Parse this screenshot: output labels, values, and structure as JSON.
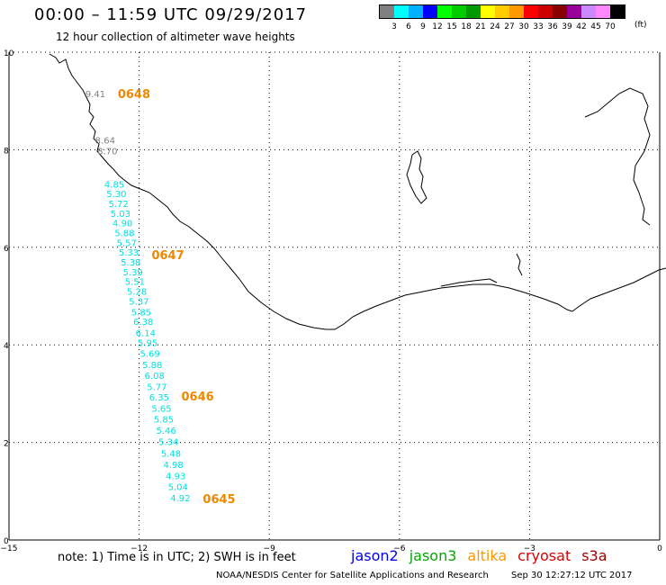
{
  "title": "00:00 – 11:59 UTC 09/29/2017",
  "subtitle": "12 hour collection of altimeter wave heights",
  "legend": {
    "unit": "(ft)",
    "bins": [
      {
        "label": "3",
        "color": "#808080"
      },
      {
        "label": "6",
        "color": "#00ffff"
      },
      {
        "label": "9",
        "color": "#00b0ff"
      },
      {
        "label": "12",
        "color": "#0000ff"
      },
      {
        "label": "15",
        "color": "#00ff00"
      },
      {
        "label": "18",
        "color": "#00cc00"
      },
      {
        "label": "21",
        "color": "#009900"
      },
      {
        "label": "24",
        "color": "#ffff00"
      },
      {
        "label": "27",
        "color": "#ffcc00"
      },
      {
        "label": "30",
        "color": "#ff9900"
      },
      {
        "label": "33",
        "color": "#ff0000"
      },
      {
        "label": "36",
        "color": "#cc0000"
      },
      {
        "label": "39",
        "color": "#880000"
      },
      {
        "label": "42",
        "color": "#990099"
      },
      {
        "label": "45",
        "color": "#cc88ff"
      },
      {
        "label": "70",
        "color": "#ff88ff"
      },
      {
        "label": "",
        "color": "#000000"
      }
    ]
  },
  "axes": {
    "lon_ticks": [
      "−15",
      "−12",
      "−9",
      "−6",
      "−3",
      "0"
    ],
    "lat_ticks": [
      "0",
      "2",
      "4",
      "6",
      "8",
      "10"
    ]
  },
  "observations": [
    {
      "lat": 9.15,
      "value": "9.41",
      "color": "#808080"
    },
    {
      "lat": 8.2,
      "value": "8.64",
      "color": "#808080"
    },
    {
      "lat": 7.98,
      "value": "8.70",
      "color": "#808080"
    },
    {
      "lat": 7.3,
      "value": "4.85",
      "color": "#00e0e0"
    },
    {
      "lat": 7.1,
      "value": "5.30",
      "color": "#00e0e0"
    },
    {
      "lat": 6.9,
      "value": "5.72",
      "color": "#00e0e0"
    },
    {
      "lat": 6.7,
      "value": "5.03",
      "color": "#00e0e0"
    },
    {
      "lat": 6.5,
      "value": "4.90",
      "color": "#00e0e0"
    },
    {
      "lat": 6.3,
      "value": "5.88",
      "color": "#00e0e0"
    },
    {
      "lat": 6.1,
      "value": "5.57",
      "color": "#00e0e0"
    },
    {
      "lat": 5.9,
      "value": "5.33",
      "color": "#00e0e0"
    },
    {
      "lat": 5.7,
      "value": "5.38",
      "color": "#00e0e0"
    },
    {
      "lat": 5.5,
      "value": "5.39",
      "color": "#00e0e0"
    },
    {
      "lat": 5.3,
      "value": "5.51",
      "color": "#00e0e0"
    },
    {
      "lat": 5.1,
      "value": "5.28",
      "color": "#00e0e0"
    },
    {
      "lat": 4.9,
      "value": "5.37",
      "color": "#00e0e0"
    },
    {
      "lat": 4.68,
      "value": "5.85",
      "color": "#00e0e0"
    },
    {
      "lat": 4.48,
      "value": "6.38",
      "color": "#00e0e0"
    },
    {
      "lat": 4.25,
      "value": "6.14",
      "color": "#00e0e0"
    },
    {
      "lat": 4.05,
      "value": "5.95",
      "color": "#00e0e0"
    },
    {
      "lat": 3.83,
      "value": "5.69",
      "color": "#00e0e0"
    },
    {
      "lat": 3.6,
      "value": "5.88",
      "color": "#00e0e0"
    },
    {
      "lat": 3.38,
      "value": "6.08",
      "color": "#00e0e0"
    },
    {
      "lat": 3.15,
      "value": "5.77",
      "color": "#00e0e0"
    },
    {
      "lat": 2.93,
      "value": "6.35",
      "color": "#00e0e0"
    },
    {
      "lat": 2.7,
      "value": "5.65",
      "color": "#00e0e0"
    },
    {
      "lat": 2.48,
      "value": "5.85",
      "color": "#00e0e0"
    },
    {
      "lat": 2.25,
      "value": "5.46",
      "color": "#00e0e0"
    },
    {
      "lat": 2.02,
      "value": "5.34",
      "color": "#00e0e0"
    },
    {
      "lat": 1.78,
      "value": "5.48",
      "color": "#00e0e0"
    },
    {
      "lat": 1.55,
      "value": "4.98",
      "color": "#00e0e0"
    },
    {
      "lat": 1.32,
      "value": "4.93",
      "color": "#00e0e0"
    },
    {
      "lat": 1.1,
      "value": "5.04",
      "color": "#00e0e0"
    },
    {
      "lat": 0.87,
      "value": "4.92",
      "color": "#00e0e0"
    }
  ],
  "pass_times": [
    {
      "lat": 9.15,
      "label": "0648"
    },
    {
      "lat": 5.85,
      "label": "0647"
    },
    {
      "lat": 2.95,
      "label": "0646"
    },
    {
      "lat": 0.85,
      "label": "0645"
    }
  ],
  "note": "note:  1) Time is in UTC;  2) SWH is in feet",
  "missions": [
    {
      "name": "jason2",
      "color": "#0000ee"
    },
    {
      "name": "jason3",
      "color": "#00aa00"
    },
    {
      "name": "altika",
      "color": "#ff9900"
    },
    {
      "name": "cryosat",
      "color": "#dd0000"
    },
    {
      "name": "s3a",
      "color": "#990000"
    }
  ],
  "credit": "NOAA/NESDIS Center for Satellite Applications and Research",
  "timestamp": "Sep 30 12:27:12 UTC 2017",
  "colors": {
    "pass_time": "#ee8800",
    "grid": "#000000",
    "coast": "#000000"
  }
}
